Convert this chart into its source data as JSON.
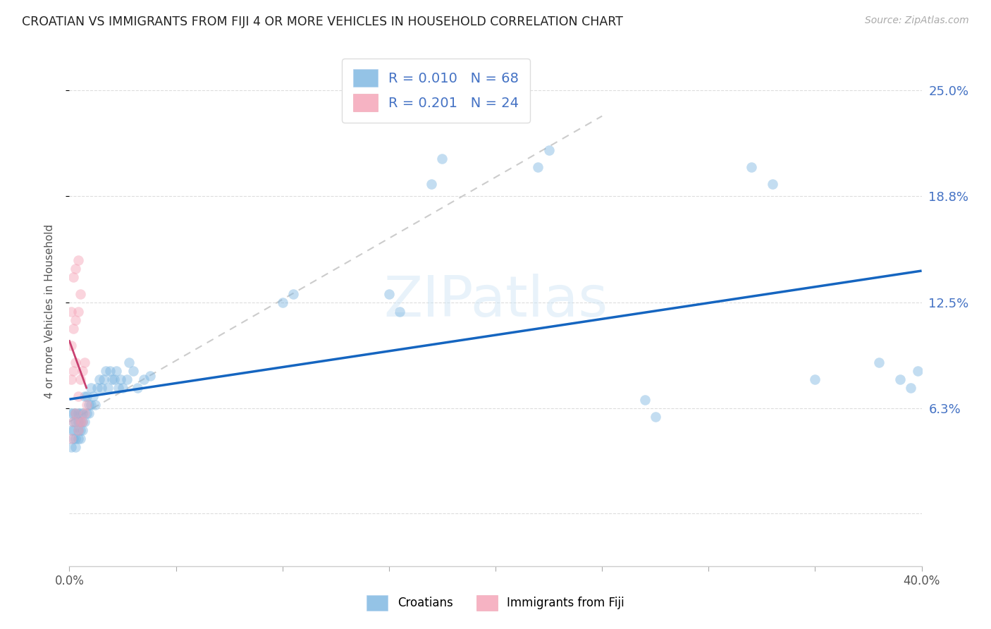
{
  "title": "CROATIAN VS IMMIGRANTS FROM FIJI 4 OR MORE VEHICLES IN HOUSEHOLD CORRELATION CHART",
  "source": "Source: ZipAtlas.com",
  "ylabel": "4 or more Vehicles in Household",
  "ytick_labels": [
    "6.3%",
    "12.5%",
    "18.8%",
    "25.0%"
  ],
  "ytick_values": [
    0.063,
    0.125,
    0.188,
    0.25
  ],
  "xtick_positions": [
    0.0,
    0.05,
    0.1,
    0.15,
    0.2,
    0.25,
    0.3,
    0.35,
    0.4
  ],
  "xlim": [
    0.0,
    0.4
  ],
  "ylim": [
    -0.03,
    0.27
  ],
  "watermark_text": "ZIPatlas",
  "legend1_r": "0.010",
  "legend1_n": "68",
  "legend2_r": "0.201",
  "legend2_n": "24",
  "blue_color": "#7ab4e0",
  "pink_color": "#f4a0b5",
  "line_blue_color": "#1565c0",
  "line_pink_color": "#c94070",
  "line_gray_color": "#cccccc",
  "background_color": "#ffffff",
  "title_color": "#222222",
  "ytick_color": "#4472c4",
  "grid_color": "#dddddd",
  "source_color": "#aaaaaa",
  "dot_size": 110,
  "dot_alpha": 0.45,
  "croatians_x": [
    0.001,
    0.001,
    0.001,
    0.002,
    0.002,
    0.002,
    0.002,
    0.003,
    0.003,
    0.003,
    0.003,
    0.004,
    0.004,
    0.004,
    0.004,
    0.005,
    0.005,
    0.005,
    0.005,
    0.006,
    0.006,
    0.006,
    0.007,
    0.007,
    0.008,
    0.008,
    0.009,
    0.009,
    0.01,
    0.01,
    0.011,
    0.012,
    0.013,
    0.014,
    0.015,
    0.016,
    0.017,
    0.018,
    0.019,
    0.02,
    0.021,
    0.022,
    0.023,
    0.024,
    0.025,
    0.027,
    0.028,
    0.03,
    0.032,
    0.035,
    0.038,
    0.17,
    0.175,
    0.22,
    0.225,
    0.32,
    0.33,
    0.35,
    0.1,
    0.105,
    0.15,
    0.155,
    0.27,
    0.275,
    0.38,
    0.39,
    0.395,
    0.398
  ],
  "croatians_y": [
    0.05,
    0.06,
    0.04,
    0.045,
    0.055,
    0.05,
    0.06,
    0.045,
    0.055,
    0.06,
    0.04,
    0.05,
    0.06,
    0.045,
    0.055,
    0.045,
    0.055,
    0.06,
    0.05,
    0.05,
    0.06,
    0.055,
    0.055,
    0.07,
    0.06,
    0.07,
    0.065,
    0.06,
    0.065,
    0.075,
    0.07,
    0.065,
    0.075,
    0.08,
    0.075,
    0.08,
    0.085,
    0.075,
    0.085,
    0.08,
    0.08,
    0.085,
    0.075,
    0.08,
    0.075,
    0.08,
    0.09,
    0.085,
    0.075,
    0.08,
    0.082,
    0.195,
    0.21,
    0.205,
    0.215,
    0.205,
    0.195,
    0.08,
    0.125,
    0.13,
    0.13,
    0.12,
    0.068,
    0.058,
    0.09,
    0.08,
    0.075,
    0.085
  ],
  "fiji_x": [
    0.001,
    0.001,
    0.001,
    0.001,
    0.002,
    0.002,
    0.002,
    0.002,
    0.003,
    0.003,
    0.003,
    0.003,
    0.004,
    0.004,
    0.004,
    0.004,
    0.005,
    0.005,
    0.005,
    0.006,
    0.006,
    0.007,
    0.007,
    0.008
  ],
  "fiji_y": [
    0.045,
    0.08,
    0.1,
    0.12,
    0.055,
    0.085,
    0.11,
    0.14,
    0.06,
    0.09,
    0.115,
    0.145,
    0.05,
    0.07,
    0.12,
    0.15,
    0.055,
    0.08,
    0.13,
    0.055,
    0.085,
    0.06,
    0.09,
    0.065
  ]
}
